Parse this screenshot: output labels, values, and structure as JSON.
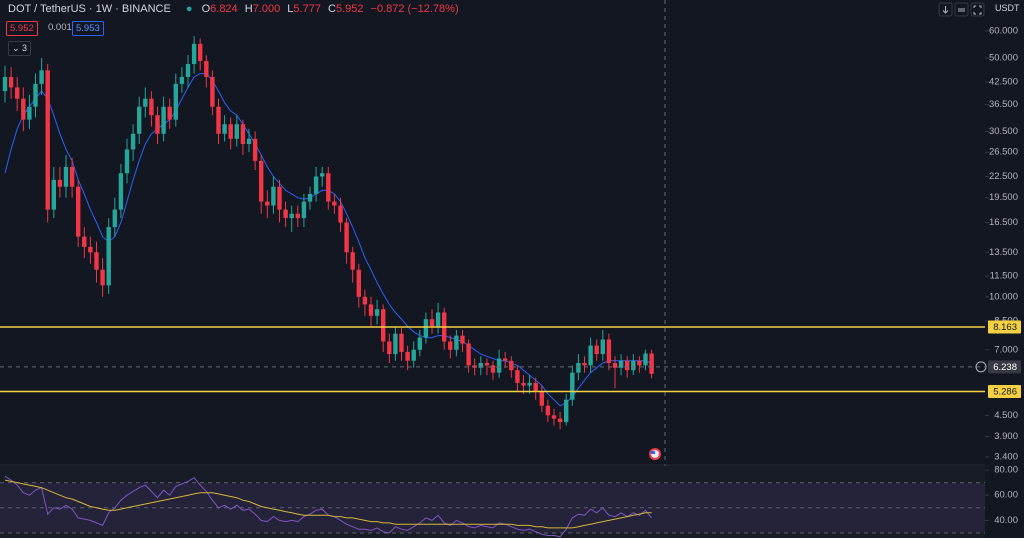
{
  "header": {
    "symbol": "DOT / TetherUS · 1W · BINANCE",
    "ohlc": [
      {
        "key": "O",
        "value": "6.824"
      },
      {
        "key": "H",
        "value": "7.000"
      },
      {
        "key": "L",
        "value": "5.777"
      },
      {
        "key": "C",
        "value": "5.952"
      }
    ],
    "change": "−0.872 (−12.78%)",
    "sell": "5.952",
    "spread": "0.001",
    "buy": "5.953",
    "indicators_count": "3",
    "currency": "USDT"
  },
  "chart_data": [
    {
      "type": "candlestick",
      "open": [
        40,
        44,
        41,
        38,
        33,
        36,
        42,
        46,
        18,
        22,
        21,
        24,
        21,
        15,
        14,
        13.5,
        12,
        10.8,
        16,
        18,
        23,
        27,
        30,
        36,
        38,
        34,
        30,
        36,
        33,
        42,
        44,
        48,
        55,
        49,
        44,
        36,
        30,
        32,
        29,
        32,
        28,
        29,
        25,
        19,
        18.5,
        21,
        18,
        17,
        17.5,
        17,
        19,
        20,
        22.5,
        23,
        19,
        18.5,
        16.5,
        13.5,
        12,
        10,
        9.5,
        8.8,
        9.2,
        7.4,
        6.8,
        7.8,
        6.9,
        6.5,
        7,
        7.6,
        8.6,
        8.2,
        9,
        7.4,
        7,
        7.7,
        7.3,
        6.3,
        6.2,
        6.4,
        6.3,
        6,
        6.6,
        6.5,
        6.1,
        5.6,
        5.5,
        5.6,
        5.3,
        4.8,
        4.5,
        4.4,
        4.3,
        5,
        6,
        6.4,
        6.3,
        7.2,
        6.8,
        7.5,
        6.4,
        6.2,
        6.5,
        6.1,
        6.5,
        6.3,
        6.824
      ],
      "high": [
        47.5,
        47,
        44,
        41,
        39,
        45,
        50,
        48,
        24,
        24,
        26,
        25.5,
        22,
        16,
        15,
        14.5,
        13,
        17,
        19.5,
        24.5,
        29,
        32,
        38.5,
        41,
        40,
        36,
        38.5,
        38,
        45,
        47,
        51,
        58,
        57,
        51,
        46,
        38,
        34,
        33.5,
        34,
        33,
        31,
        30.5,
        26,
        20.5,
        22.5,
        22,
        19,
        18.5,
        18.5,
        20,
        21,
        24,
        24,
        24,
        20,
        19.5,
        17,
        14,
        12.5,
        10.5,
        10,
        9.8,
        9.5,
        7.8,
        8.2,
        8.1,
        7.2,
        7.4,
        8,
        9,
        9.2,
        9.6,
        9.3,
        7.7,
        8,
        8,
        7.5,
        6.6,
        6.7,
        6.6,
        6.5,
        7,
        6.9,
        6.7,
        6.3,
        5.9,
        5.9,
        5.8,
        5.5,
        5,
        4.7,
        4.6,
        5.2,
        6.3,
        6.8,
        6.7,
        7.6,
        7.5,
        8,
        7.8,
        6.7,
        6.8,
        6.7,
        6.8,
        6.7,
        7,
        7
      ],
      "low": [
        37,
        38,
        35,
        30.5,
        31,
        33.5,
        39,
        16.5,
        17,
        19.5,
        19.5,
        19.5,
        14,
        13,
        12.5,
        11,
        10,
        10.2,
        15,
        17,
        21.5,
        25,
        28,
        33.5,
        31.5,
        28,
        28.5,
        31,
        31.5,
        39.5,
        41,
        45,
        46,
        41,
        34,
        28,
        28.5,
        27,
        27.5,
        26,
        26.5,
        23.5,
        17.5,
        17,
        17.5,
        16.5,
        16,
        15.5,
        16,
        16,
        18,
        19,
        21,
        18,
        17.5,
        15.5,
        12.5,
        11,
        9.3,
        8.8,
        8.2,
        8.3,
        6.9,
        6.4,
        6.5,
        6.5,
        6.1,
        6.2,
        6.7,
        7.3,
        7.8,
        7.8,
        7,
        6.6,
        6.7,
        6.9,
        6,
        5.9,
        5.9,
        5.9,
        5.7,
        5.8,
        6.2,
        5.8,
        5.3,
        5.2,
        5.2,
        5,
        4.6,
        4.3,
        4.2,
        4.1,
        4.2,
        4.8,
        5.7,
        6,
        6,
        6.5,
        6.5,
        6.1,
        5.4,
        5.9,
        5.8,
        5.9,
        6,
        6.1,
        5.777
      ],
      "close": [
        44,
        41,
        38,
        33,
        36,
        42,
        46,
        18,
        22,
        21,
        24,
        21,
        15,
        14,
        13.5,
        12,
        10.8,
        16,
        18,
        23,
        27,
        30,
        36,
        38,
        34,
        30,
        36,
        33,
        42,
        44,
        48,
        55,
        49,
        44,
        36,
        30,
        32,
        29,
        32,
        28,
        29,
        25,
        19,
        18.5,
        21,
        18,
        17,
        17.5,
        17,
        19,
        20,
        22.5,
        23,
        19,
        18.5,
        16.5,
        13.5,
        12,
        10,
        9.5,
        8.8,
        9.2,
        7.4,
        6.8,
        7.8,
        6.9,
        6.5,
        7,
        7.6,
        8.6,
        8.2,
        9,
        7.4,
        7,
        7.7,
        7.3,
        6.3,
        6.2,
        6.4,
        6.3,
        6,
        6.6,
        6.5,
        6.1,
        5.6,
        5.5,
        5.6,
        5.3,
        4.8,
        4.5,
        4.4,
        4.3,
        5,
        6,
        6.4,
        6.3,
        7.2,
        6.8,
        7.5,
        6.4,
        6.2,
        6.5,
        6.1,
        6.5,
        6.3,
        6.824,
        5.952
      ],
      "up_color": "#26a69a",
      "down_color": "#f23645",
      "log_scale": true,
      "ylim": [
        3.22,
        73.9
      ],
      "yticks": [
        {
          "value": 60,
          "label": "60.000"
        },
        {
          "value": 50,
          "label": "50.000"
        },
        {
          "value": 42.5,
          "label": "42.500"
        },
        {
          "value": 36.5,
          "label": "36.500"
        },
        {
          "value": 30.5,
          "label": "30.500"
        },
        {
          "value": 26.5,
          "label": "26.500"
        },
        {
          "value": 22.5,
          "label": "22.500"
        },
        {
          "value": 19.5,
          "label": "19.500"
        },
        {
          "value": 16.5,
          "label": "16.500"
        },
        {
          "value": 13.5,
          "label": "13.500"
        },
        {
          "value": 11.5,
          "label": "11.500"
        },
        {
          "value": 10,
          "label": "10.000"
        },
        {
          "value": 8.5,
          "label": "8.500"
        },
        {
          "value": 7,
          "label": "7.000"
        },
        {
          "value": 4.5,
          "label": "4.500"
        },
        {
          "value": 3.9,
          "label": "3.900"
        },
        {
          "value": 3.4,
          "label": "3.400"
        }
      ],
      "overlays": [
        {
          "type": "line",
          "color": "#2962ff",
          "values": [
            23,
            27,
            31,
            34,
            36,
            38,
            40,
            38,
            34,
            30,
            27,
            25,
            22,
            20,
            18,
            16.5,
            15,
            14.5,
            15,
            16.5,
            19,
            22,
            25,
            28,
            30,
            31,
            32,
            33,
            35,
            38,
            41,
            44,
            45,
            45,
            43,
            40,
            37,
            35,
            34,
            32,
            30,
            28,
            26,
            24,
            22.5,
            21.5,
            20.5,
            20,
            19.5,
            19.3,
            19.5,
            20,
            20.5,
            20.5,
            20,
            19,
            17.5,
            16,
            14.5,
            13,
            12,
            11,
            10.2,
            9.5,
            9,
            8.6,
            8.2,
            7.9,
            7.7,
            7.6,
            7.6,
            7.7,
            7.7,
            7.6,
            7.5,
            7.4,
            7.2,
            7,
            6.8,
            6.7,
            6.6,
            6.5,
            6.5,
            6.4,
            6.3,
            6.1,
            5.9,
            5.7,
            5.5,
            5.2,
            5,
            4.8,
            4.9,
            5.1,
            5.4,
            5.7,
            6,
            6.2,
            6.4,
            6.5,
            6.5,
            6.5,
            6.5,
            6.5,
            6.5,
            6.5,
            6.4
          ]
        }
      ],
      "levels": [
        {
          "value": 8.163,
          "label": "8.163",
          "color": "#f5d142"
        },
        {
          "value": 5.286,
          "label": "5.286",
          "color": "#f5d142"
        }
      ],
      "crosshair": {
        "value": 6.238,
        "label": "6.238"
      }
    },
    {
      "type": "line",
      "series": [
        {
          "color": "#7e57c2",
          "values": [
            75,
            72,
            68,
            62,
            60,
            64,
            66,
            45,
            50,
            49,
            52,
            49,
            42,
            41,
            40,
            38,
            36,
            46,
            50,
            56,
            60,
            63,
            66,
            68,
            63,
            58,
            64,
            60,
            67,
            69,
            71,
            74,
            68,
            63,
            56,
            50,
            52,
            49,
            52,
            48,
            49,
            45,
            40,
            39,
            43,
            40,
            39,
            40,
            39,
            43,
            45,
            48,
            49,
            44,
            43,
            40,
            37,
            35,
            33,
            33,
            32,
            34,
            31,
            30,
            35,
            33,
            32,
            35,
            38,
            42,
            40,
            44,
            38,
            36,
            40,
            38,
            35,
            34,
            36,
            35,
            34,
            38,
            37,
            35,
            33,
            32,
            33,
            31,
            29,
            28,
            28,
            27,
            33,
            42,
            45,
            44,
            49,
            46,
            50,
            44,
            43,
            46,
            43,
            46,
            44,
            48,
            42
          ]
        },
        {
          "color": "#d4b73a",
          "values": [
            72,
            71,
            70,
            69,
            68,
            67,
            66,
            64,
            62,
            60,
            58,
            57,
            55,
            53,
            51,
            50,
            49,
            48,
            48,
            49,
            50,
            51,
            52,
            53,
            54,
            55,
            56,
            57,
            58,
            59,
            60,
            61,
            62,
            62,
            62,
            61,
            60,
            59,
            58,
            56,
            55,
            53,
            51,
            50,
            49,
            48,
            47,
            46,
            45,
            44,
            44,
            44,
            44,
            44,
            43,
            43,
            42,
            42,
            41,
            40,
            39,
            39,
            38,
            38,
            37,
            37,
            37,
            37,
            37,
            37,
            37,
            37,
            37,
            37,
            37,
            37,
            37,
            37,
            37,
            37,
            37,
            37,
            37,
            37,
            36,
            36,
            36,
            35,
            35,
            34,
            34,
            34,
            34,
            34,
            35,
            36,
            37,
            38,
            39,
            40,
            41,
            42,
            43,
            44,
            45,
            46,
            46
          ]
        }
      ],
      "ylim": [
        26,
        84
      ],
      "yticks": [
        {
          "value": 80,
          "label": "80.00"
        },
        {
          "value": 60,
          "label": "60.00"
        },
        {
          "value": 40,
          "label": "40.00"
        }
      ],
      "band": [
        30,
        70
      ],
      "levels": [
        70,
        50,
        30
      ]
    }
  ]
}
